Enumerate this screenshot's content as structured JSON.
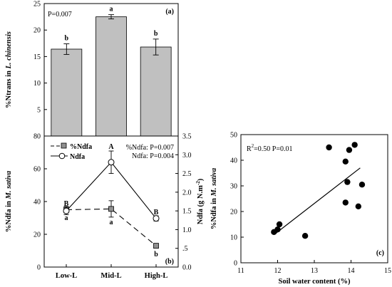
{
  "chart_data": [
    {
      "panel": "(a)",
      "type": "bar",
      "categories": [
        "Low-L",
        "Mid-L",
        "High-L"
      ],
      "values": [
        16.4,
        22.5,
        16.8
      ],
      "errors": [
        1.0,
        0.4,
        1.5
      ],
      "letters": [
        "b",
        "a",
        "b"
      ],
      "stat": "P=0.007",
      "ylabel_pre": "%Ntrans in ",
      "ylabel_species": "L. chinensis",
      "ylim": [
        0,
        25
      ],
      "yticks": [
        "5",
        "10",
        "15",
        "20",
        "25"
      ],
      "bar_color": "#c0c0c0"
    },
    {
      "panel": "(b)",
      "type": "line",
      "categories": [
        "Low-L",
        "Mid-L",
        "High-L"
      ],
      "series": [
        {
          "name": "%Ndfa",
          "axis": "left",
          "values": [
            35,
            35.5,
            13
          ],
          "errors": [
            2,
            5,
            1
          ],
          "letters": [
            "a",
            "a",
            "b"
          ],
          "marker": "square",
          "dash": true
        },
        {
          "name": "Ndfa",
          "axis": "right",
          "values": [
            1.5,
            2.8,
            1.3
          ],
          "errors": [
            0.1,
            0.3,
            0.07
          ],
          "letters": [
            "B",
            "A",
            "B"
          ],
          "marker": "circle",
          "dash": false
        }
      ],
      "stats": [
        "%Ndfa: P=0.007",
        "Ndfa: P=0.004"
      ],
      "ylabel_pre": "%Ndfa in ",
      "ylabel_species": "M. sativa",
      "ylim": [
        0,
        80
      ],
      "yticks": [
        "0",
        "20",
        "40",
        "60",
        "80"
      ],
      "y2label_pre": "Ndfa (g N.m",
      "y2label_sup": "-2",
      "y2label_post": ")",
      "y2lim": [
        0,
        3.5
      ],
      "y2ticks": [
        "0.0",
        ".5",
        "1.0",
        "1.5",
        "2.0",
        "2.5",
        "3.0",
        "3.5"
      ]
    },
    {
      "panel": "(c)",
      "type": "scatter",
      "points": [
        {
          "x": 11.9,
          "y": 12
        },
        {
          "x": 12.0,
          "y": 13
        },
        {
          "x": 12.05,
          "y": 15
        },
        {
          "x": 12.75,
          "y": 10.5
        },
        {
          "x": 13.4,
          "y": 45
        },
        {
          "x": 13.85,
          "y": 23.5
        },
        {
          "x": 13.85,
          "y": 39.5
        },
        {
          "x": 13.9,
          "y": 31.5
        },
        {
          "x": 13.95,
          "y": 44
        },
        {
          "x": 14.1,
          "y": 46
        },
        {
          "x": 14.2,
          "y": 22
        },
        {
          "x": 14.3,
          "y": 30.5
        }
      ],
      "fit": {
        "x": [
          11.95,
          14.25
        ],
        "y": [
          11.5,
          37
        ]
      },
      "stat_base": "R",
      "stat_sup": "2",
      "stat_rest": "=0.50 P=0.01",
      "xlabel": "Soil water content (%)",
      "ylabel_pre": "%Ndfa in ",
      "ylabel_species": "M. sativa",
      "xlim": [
        11,
        15
      ],
      "ylim": [
        0,
        50
      ],
      "xticks": [
        "11",
        "12",
        "13",
        "14",
        "15"
      ],
      "yticks": [
        "0",
        "10",
        "20",
        "30",
        "40",
        "50"
      ]
    }
  ]
}
